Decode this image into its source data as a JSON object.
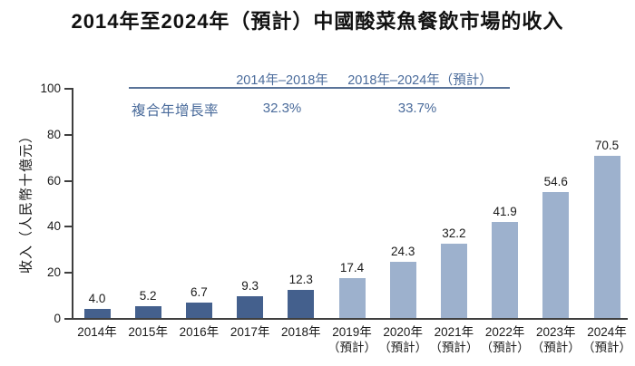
{
  "title": "2014年至2024年（預計）中國酸菜魚餐飲市場的收入",
  "cagr_table": {
    "row_label": "複合年增長率",
    "columns": [
      {
        "period": "2014年–2018年",
        "value": "32.3%"
      },
      {
        "period": "2018年–2024年（預計）",
        "value": "33.7%"
      }
    ]
  },
  "chart_data": {
    "type": "bar",
    "title": "2014年至2024年（預計）中國酸菜魚餐飲市場的收入",
    "xlabel": "",
    "ylabel": "收入（人民幣十億元）",
    "ylim": [
      0,
      100
    ],
    "yticks": [
      0,
      20,
      40,
      60,
      80,
      100
    ],
    "grid": false,
    "legend": "none",
    "categories": [
      "2014年",
      "2015年",
      "2016年",
      "2017年",
      "2018年",
      "2019年",
      "2020年",
      "2021年",
      "2022年",
      "2023年",
      "2024年"
    ],
    "category_notes": [
      "",
      "",
      "",
      "",
      "",
      "（預計）",
      "（預計）",
      "（預計）",
      "（預計）",
      "（預計）",
      "（預計）"
    ],
    "values": [
      4.0,
      5.2,
      6.7,
      9.3,
      12.3,
      17.4,
      24.3,
      32.2,
      41.9,
      54.6,
      70.5
    ],
    "forecast_start_index": 5,
    "colors": {
      "actual_bar": "#44608D",
      "forecast_bar": "#9DB1CD",
      "accent_text": "#4A6B9B",
      "axis": "#3F3F3F",
      "text": "#1A1A1A"
    }
  }
}
